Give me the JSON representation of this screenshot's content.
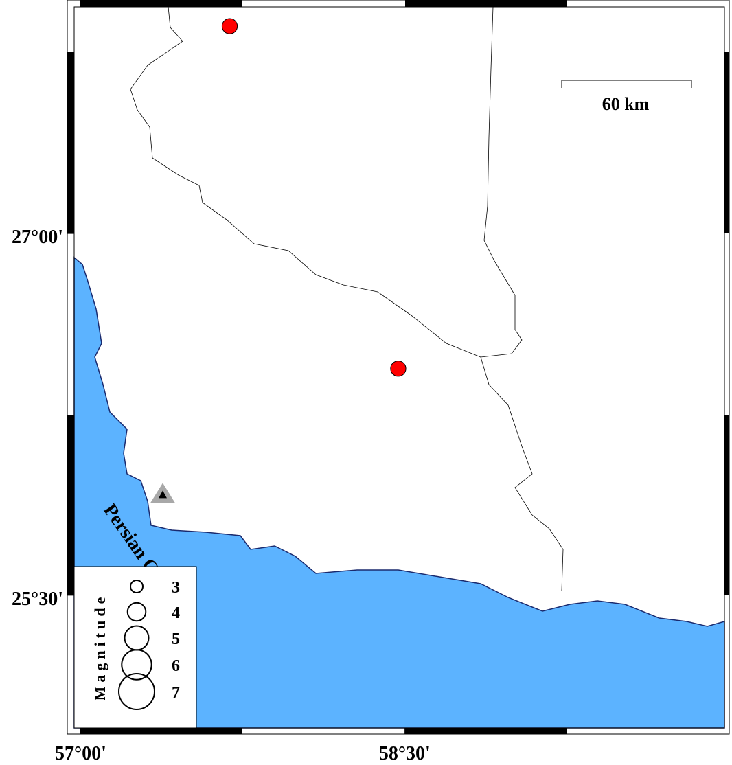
{
  "map": {
    "xlim": [
      56.97,
      59.98
    ],
    "ylim": [
      24.95,
      27.94
    ],
    "xticks": [
      {
        "value": 57,
        "label": "57°00'"
      },
      {
        "value": 58.5,
        "label": "58°30'"
      }
    ],
    "yticks": [
      {
        "value": 25.5,
        "label": "25°30'"
      },
      {
        "value": 27,
        "label": "27°00'"
      }
    ],
    "events": [
      {
        "lon": 57.69,
        "lat": 27.86,
        "mag": 3.5
      },
      {
        "lon": 58.47,
        "lat": 26.44,
        "mag": 3.5
      }
    ],
    "event_color": "#ff0000",
    "station": {
      "lon": 57.38,
      "lat": 25.92
    },
    "scale_bar": {
      "label": "60 km"
    },
    "sea_label": "Persian Gulf",
    "legend": {
      "title": "Magnitude",
      "magnitudes": [
        3,
        4,
        5,
        6,
        7
      ]
    }
  }
}
